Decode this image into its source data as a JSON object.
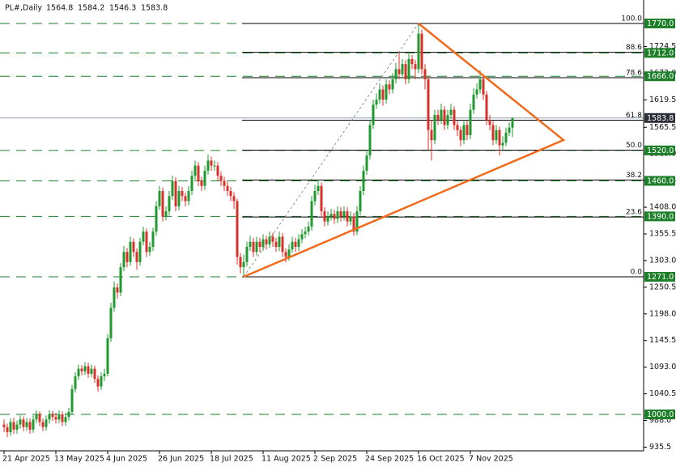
{
  "chart_data": {
    "type": "candlestick",
    "symbol": "PL#,Daily",
    "up_color": "#1f9a2e",
    "down_color": "#d8302a",
    "level_color": "#1d7f2a",
    "price_line_color": "#8fa3b8",
    "ylim": [
      928.3,
      1816.2
    ],
    "yticks": [
      935.5,
      {
        "value": 988,
        "label": "988.0"
      },
      1040.5,
      {
        "value": 1093,
        "label": "1093.0"
      },
      1145.5,
      {
        "value": 1198,
        "label": "1198.0"
      },
      1250.5,
      {
        "value": 1303,
        "label": "1303.0"
      },
      1355.5,
      {
        "value": 1408,
        "label": "1408.0"
      },
      1460.5,
      {
        "value": 1513,
        "label": "1513.0"
      },
      1565.5,
      1619.5,
      {
        "value": 1672,
        "label": "1672.0"
      },
      1724.5
    ],
    "levels": [
      {
        "value": 1770,
        "label": "1770.0"
      },
      {
        "value": 1712,
        "label": "1712.0"
      },
      {
        "value": 1666,
        "label": "1666.0"
      },
      {
        "value": 1520,
        "label": "1520.0"
      },
      {
        "value": 1460,
        "label": "1460.0"
      },
      {
        "value": 1390,
        "label": "1390.0"
      },
      {
        "value": 1271,
        "label": "1271.0"
      },
      {
        "value": 1000,
        "label": "1000.0"
      }
    ],
    "fibonacci": {
      "low": 1271,
      "high": 1770,
      "levels": [
        {
          "value": 100,
          "label": "100.0"
        },
        {
          "value": 88.6,
          "label": "88.6"
        },
        {
          "value": 78.6,
          "label": "78.6"
        },
        {
          "value": 61.8,
          "label": "61.8"
        },
        {
          "value": 50,
          "label": "50.0"
        },
        {
          "value": 38.2,
          "label": "38.2"
        },
        {
          "value": 23.6,
          "label": "23.6"
        },
        {
          "value": 0,
          "label": "0.0"
        }
      ]
    },
    "categories": [
      "21 Apr 2025",
      null,
      null,
      null,
      null,
      null,
      null,
      null,
      null,
      null,
      null,
      null,
      null,
      null,
      null,
      null,
      "13 May 2025",
      null,
      null,
      null,
      null,
      null,
      null,
      null,
      null,
      null,
      null,
      null,
      null,
      null,
      null,
      null,
      "4 Jun 2025",
      null,
      null,
      null,
      null,
      null,
      null,
      null,
      null,
      null,
      null,
      null,
      null,
      null,
      null,
      null,
      "26 Jun 2025",
      null,
      null,
      null,
      null,
      null,
      null,
      null,
      null,
      null,
      null,
      null,
      null,
      null,
      null,
      null,
      "18 Jul 2025",
      null,
      null,
      null,
      null,
      null,
      null,
      null,
      null,
      null,
      null,
      null,
      null,
      null,
      null,
      null,
      "11 Aug 2025",
      null,
      null,
      null,
      null,
      null,
      null,
      null,
      null,
      null,
      null,
      null,
      null,
      null,
      null,
      null,
      "2 Sep 2025",
      null,
      null,
      null,
      null,
      null,
      null,
      null,
      null,
      null,
      null,
      null,
      null,
      null,
      null,
      null,
      "24 Sep 2025",
      null,
      null,
      null,
      null,
      null,
      null,
      null,
      null,
      null,
      null,
      null,
      null,
      null,
      null,
      null,
      "16 Oct 2025",
      null,
      null,
      null,
      null,
      null,
      null,
      null,
      null,
      null,
      null,
      null,
      null,
      null,
      null,
      null,
      "7 Nov 2025",
      null,
      null,
      null,
      null,
      null,
      null,
      null,
      null,
      null,
      null,
      null,
      null,
      null
    ],
    "ohlc": [
      [
        980,
        990,
        965,
        975
      ],
      [
        975,
        982,
        955,
        965
      ],
      [
        965,
        992,
        958,
        985
      ],
      [
        985,
        993,
        962,
        970
      ],
      [
        970,
        988,
        962,
        980
      ],
      [
        980,
        998,
        972,
        990
      ],
      [
        990,
        996,
        967,
        975
      ],
      [
        975,
        993,
        968,
        985
      ],
      [
        985,
        992,
        962,
        970
      ],
      [
        970,
        998,
        964,
        990
      ],
      [
        990,
        1008,
        983,
        1000
      ],
      [
        1000,
        1006,
        977,
        985
      ],
      [
        985,
        992,
        967,
        975
      ],
      [
        975,
        998,
        968,
        990
      ],
      [
        990,
        1008,
        982,
        1000
      ],
      [
        1000,
        1007,
        987,
        995
      ],
      [
        995,
        1003,
        982,
        990
      ],
      [
        990,
        1008,
        983,
        1000
      ],
      [
        1000,
        1006,
        977,
        985
      ],
      [
        985,
        1003,
        978,
        995
      ],
      [
        995,
        1013,
        988,
        1005
      ],
      [
        1005,
        1058,
        1000,
        1050
      ],
      [
        1050,
        1083,
        1043,
        1075
      ],
      [
        1075,
        1098,
        1068,
        1090
      ],
      [
        1090,
        1097,
        1077,
        1085
      ],
      [
        1085,
        1103,
        1078,
        1095
      ],
      [
        1095,
        1102,
        1072,
        1080
      ],
      [
        1080,
        1098,
        1073,
        1090
      ],
      [
        1090,
        1096,
        1062,
        1070
      ],
      [
        1070,
        1077,
        1045,
        1055
      ],
      [
        1055,
        1083,
        1048,
        1075
      ],
      [
        1075,
        1090,
        1066,
        1080
      ],
      [
        1080,
        1158,
        1075,
        1150
      ],
      [
        1150,
        1220,
        1143,
        1210
      ],
      [
        1210,
        1262,
        1202,
        1250
      ],
      [
        1250,
        1258,
        1228,
        1240
      ],
      [
        1240,
        1298,
        1233,
        1290
      ],
      [
        1290,
        1332,
        1282,
        1320
      ],
      [
        1320,
        1328,
        1290,
        1300
      ],
      [
        1300,
        1350,
        1293,
        1340
      ],
      [
        1340,
        1347,
        1310,
        1320
      ],
      [
        1320,
        1327,
        1285,
        1300
      ],
      [
        1300,
        1348,
        1293,
        1340
      ],
      [
        1340,
        1370,
        1333,
        1360
      ],
      [
        1360,
        1366,
        1310,
        1320
      ],
      [
        1320,
        1340,
        1312,
        1330
      ],
      [
        1330,
        1368,
        1322,
        1360
      ],
      [
        1360,
        1420,
        1352,
        1410
      ],
      [
        1410,
        1450,
        1403,
        1440
      ],
      [
        1440,
        1447,
        1380,
        1390
      ],
      [
        1390,
        1410,
        1382,
        1400
      ],
      [
        1400,
        1440,
        1392,
        1430
      ],
      [
        1430,
        1470,
        1422,
        1460
      ],
      [
        1460,
        1467,
        1400,
        1410
      ],
      [
        1410,
        1450,
        1402,
        1440
      ],
      [
        1440,
        1448,
        1420,
        1430
      ],
      [
        1430,
        1437,
        1410,
        1420
      ],
      [
        1420,
        1450,
        1412,
        1440
      ],
      [
        1440,
        1480,
        1432,
        1470
      ],
      [
        1470,
        1500,
        1462,
        1490
      ],
      [
        1490,
        1497,
        1450,
        1460
      ],
      [
        1460,
        1468,
        1440,
        1450
      ],
      [
        1450,
        1490,
        1442,
        1480
      ],
      [
        1480,
        1512,
        1472,
        1500
      ],
      [
        1500,
        1508,
        1480,
        1490
      ],
      [
        1490,
        1500,
        1480,
        1490
      ],
      [
        1490,
        1497,
        1460,
        1470
      ],
      [
        1470,
        1478,
        1450,
        1460
      ],
      [
        1460,
        1468,
        1440,
        1450
      ],
      [
        1450,
        1458,
        1430,
        1440
      ],
      [
        1440,
        1448,
        1420,
        1430
      ],
      [
        1430,
        1438,
        1405,
        1420
      ],
      [
        1420,
        1425,
        1295,
        1310
      ],
      [
        1310,
        1318,
        1278,
        1290
      ],
      [
        1290,
        1315,
        1271,
        1300
      ],
      [
        1300,
        1340,
        1292,
        1330
      ],
      [
        1330,
        1352,
        1322,
        1340
      ],
      [
        1340,
        1348,
        1310,
        1320
      ],
      [
        1320,
        1350,
        1313,
        1340
      ],
      [
        1340,
        1348,
        1320,
        1330
      ],
      [
        1330,
        1355,
        1322,
        1345
      ],
      [
        1345,
        1352,
        1325,
        1335
      ],
      [
        1335,
        1360,
        1328,
        1350
      ],
      [
        1350,
        1358,
        1330,
        1340
      ],
      [
        1340,
        1348,
        1320,
        1330
      ],
      [
        1330,
        1360,
        1322,
        1350
      ],
      [
        1350,
        1357,
        1310,
        1320
      ],
      [
        1320,
        1327,
        1300,
        1310
      ],
      [
        1310,
        1335,
        1303,
        1325
      ],
      [
        1325,
        1350,
        1318,
        1340
      ],
      [
        1340,
        1348,
        1320,
        1330
      ],
      [
        1330,
        1355,
        1322,
        1345
      ],
      [
        1345,
        1365,
        1337,
        1355
      ],
      [
        1355,
        1370,
        1347,
        1360
      ],
      [
        1360,
        1380,
        1352,
        1370
      ],
      [
        1370,
        1430,
        1362,
        1420
      ],
      [
        1420,
        1452,
        1412,
        1440
      ],
      [
        1440,
        1462,
        1432,
        1450
      ],
      [
        1450,
        1457,
        1390,
        1400
      ],
      [
        1400,
        1408,
        1370,
        1380
      ],
      [
        1380,
        1400,
        1372,
        1390
      ],
      [
        1390,
        1405,
        1382,
        1395
      ],
      [
        1395,
        1403,
        1375,
        1385
      ],
      [
        1385,
        1410,
        1377,
        1400
      ],
      [
        1400,
        1408,
        1380,
        1390
      ],
      [
        1390,
        1410,
        1382,
        1400
      ],
      [
        1400,
        1408,
        1370,
        1380
      ],
      [
        1380,
        1400,
        1372,
        1390
      ],
      [
        1390,
        1397,
        1352,
        1360
      ],
      [
        1360,
        1410,
        1353,
        1400
      ],
      [
        1400,
        1450,
        1392,
        1440
      ],
      [
        1440,
        1490,
        1432,
        1480
      ],
      [
        1480,
        1520,
        1472,
        1510
      ],
      [
        1510,
        1580,
        1502,
        1570
      ],
      [
        1570,
        1620,
        1562,
        1610
      ],
      [
        1610,
        1632,
        1602,
        1620
      ],
      [
        1620,
        1652,
        1612,
        1640
      ],
      [
        1640,
        1648,
        1608,
        1620
      ],
      [
        1620,
        1660,
        1612,
        1650
      ],
      [
        1650,
        1658,
        1630,
        1640
      ],
      [
        1640,
        1672,
        1632,
        1660
      ],
      [
        1660,
        1692,
        1652,
        1680
      ],
      [
        1680,
        1712,
        1660,
        1670
      ],
      [
        1670,
        1700,
        1662,
        1690
      ],
      [
        1690,
        1698,
        1650,
        1660
      ],
      [
        1660,
        1710,
        1652,
        1700
      ],
      [
        1700,
        1708,
        1680,
        1690
      ],
      [
        1690,
        1698,
        1660,
        1680
      ],
      [
        1680,
        1770,
        1672,
        1750
      ],
      [
        1750,
        1758,
        1670,
        1680
      ],
      [
        1680,
        1690,
        1640,
        1660
      ],
      [
        1660,
        1665,
        1520,
        1560
      ],
      [
        1560,
        1580,
        1500,
        1540
      ],
      [
        1540,
        1600,
        1532,
        1590
      ],
      [
        1590,
        1600,
        1570,
        1580
      ],
      [
        1580,
        1612,
        1572,
        1600
      ],
      [
        1600,
        1607,
        1560,
        1570
      ],
      [
        1570,
        1600,
        1562,
        1590
      ],
      [
        1590,
        1612,
        1582,
        1600
      ],
      [
        1600,
        1607,
        1560,
        1570
      ],
      [
        1570,
        1578,
        1548,
        1560
      ],
      [
        1560,
        1567,
        1528,
        1540
      ],
      [
        1540,
        1580,
        1532,
        1570
      ],
      [
        1570,
        1578,
        1540,
        1550
      ],
      [
        1550,
        1612,
        1542,
        1600
      ],
      [
        1600,
        1642,
        1592,
        1630
      ],
      [
        1630,
        1652,
        1622,
        1640
      ],
      [
        1640,
        1678,
        1632,
        1660
      ],
      [
        1660,
        1667,
        1620,
        1630
      ],
      [
        1630,
        1637,
        1570,
        1580
      ],
      [
        1580,
        1590,
        1560,
        1570
      ],
      [
        1570,
        1578,
        1530,
        1540
      ],
      [
        1540,
        1570,
        1532,
        1560
      ],
      [
        1560,
        1567,
        1510,
        1530
      ],
      [
        1530,
        1548,
        1522,
        1535
      ],
      [
        1535,
        1565,
        1528,
        1555
      ],
      [
        1555,
        1575,
        1548,
        1565
      ],
      [
        1564.8,
        1584.2,
        1546.3,
        1583.8
      ]
    ]
  }
}
